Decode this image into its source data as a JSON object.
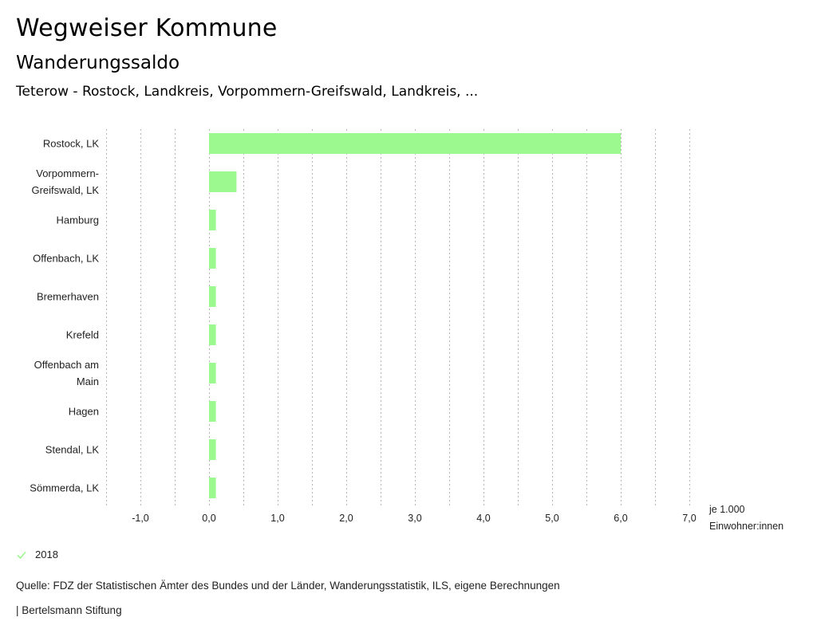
{
  "header": {
    "title": "Wegweiser Kommune",
    "subtitle": "Wanderungssaldo",
    "context": "Teterow - Rostock, Landkreis, Vorpommern-Greifswald, Landkreis, ..."
  },
  "chart_data": {
    "type": "bar",
    "orientation": "horizontal",
    "title": "Wanderungssaldo",
    "categories": [
      [
        "Rostock, LK"
      ],
      [
        "Vorpommern-",
        "Greifswald, LK"
      ],
      [
        "Hamburg"
      ],
      [
        "Offenbach, LK"
      ],
      [
        "Bremerhaven"
      ],
      [
        "Krefeld"
      ],
      [
        "Offenbach am",
        "Main"
      ],
      [
        "Hagen"
      ],
      [
        "Stendal, LK"
      ],
      [
        "Sömmerda, LK"
      ]
    ],
    "series": [
      {
        "name": "2018",
        "color": "#9cf98f",
        "values": [
          6.0,
          0.4,
          0.1,
          0.1,
          0.1,
          0.1,
          0.1,
          0.1,
          0.1,
          0.1
        ]
      }
    ],
    "xlim": [
      -1.5,
      7.0
    ],
    "x_ticks": [
      -1.0,
      0.0,
      1.0,
      2.0,
      3.0,
      4.0,
      5.0,
      6.0,
      7.0
    ],
    "x_tick_labels": [
      "-1,0",
      "0,0",
      "1,0",
      "2,0",
      "3,0",
      "4,0",
      "5,0",
      "6,0",
      "7,0"
    ],
    "gridline_step": 0.5,
    "grid": true,
    "xlabel": [
      "je 1.000",
      "Einwohner:innen"
    ],
    "ylabel": "",
    "legend_position": "bottom-left"
  },
  "legend": {
    "items": [
      {
        "label": "2018",
        "icon": "check-icon",
        "color": "#9cf98f"
      }
    ]
  },
  "footer": {
    "source": "Quelle: FDZ der Statistischen Ämter des Bundes und der Länder, Wanderungsstatistik, ILS, eigene Berechnungen",
    "credit": "| Bertelsmann Stiftung"
  }
}
